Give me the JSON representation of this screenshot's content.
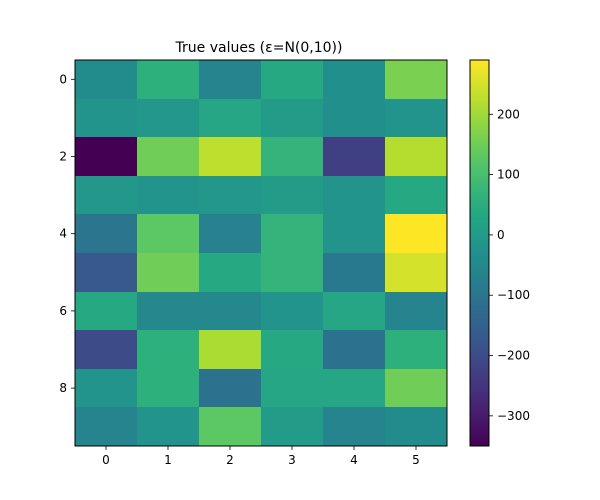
{
  "chart_data": {
    "type": "heatmap",
    "title": "True values (ε=N(0,10))",
    "colormap": "viridis",
    "n_rows": 10,
    "n_cols": 6,
    "x_tick_labels": [
      "0",
      "1",
      "2",
      "3",
      "4",
      "5"
    ],
    "y_tick_values": [
      0,
      2,
      4,
      6,
      8
    ],
    "y_tick_labels": [
      "0",
      "2",
      "4",
      "6",
      "8"
    ],
    "values": [
      [
        -40,
        60,
        -60,
        40,
        -30,
        160
      ],
      [
        -20,
        -10,
        30,
        0,
        -30,
        -20
      ],
      [
        -350,
        150,
        230,
        70,
        -230,
        220
      ],
      [
        -10,
        -20,
        -10,
        0,
        -20,
        40
      ],
      [
        -100,
        130,
        -70,
        70,
        -20,
        290
      ],
      [
        -170,
        150,
        40,
        70,
        -90,
        250
      ],
      [
        40,
        -50,
        -50,
        -20,
        30,
        -60
      ],
      [
        -200,
        60,
        210,
        40,
        -110,
        60
      ],
      [
        -20,
        60,
        -110,
        30,
        30,
        150
      ],
      [
        -60,
        -20,
        130,
        0,
        -60,
        -40
      ]
    ],
    "colorbar": {
      "vmin": -350,
      "vmax": 290,
      "tick_values": [
        -300,
        -200,
        -100,
        0,
        100,
        200
      ],
      "tick_labels": [
        "−300",
        "−200",
        "−100",
        "0",
        "100",
        "200"
      ]
    }
  }
}
